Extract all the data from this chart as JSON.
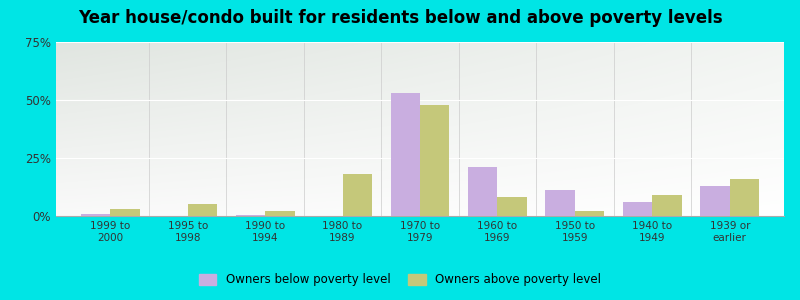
{
  "categories": [
    "1999 to\n2000",
    "1995 to\n1998",
    "1990 to\n1994",
    "1980 to\n1989",
    "1970 to\n1979",
    "1960 to\n1969",
    "1950 to\n1959",
    "1940 to\n1949",
    "1939 or\nearlier"
  ],
  "below_poverty": [
    1.0,
    0.0,
    0.5,
    0.0,
    53.0,
    21.0,
    11.0,
    6.0,
    13.0
  ],
  "above_poverty": [
    3.0,
    5.0,
    2.0,
    18.0,
    48.0,
    8.0,
    2.0,
    9.0,
    16.0
  ],
  "below_color": "#c9aee0",
  "above_color": "#c5c87a",
  "title": "Year house/condo built for residents below and above poverty levels",
  "title_fontsize": 12,
  "ylim": [
    0,
    75
  ],
  "yticks": [
    0,
    25,
    50,
    75
  ],
  "ytick_labels": [
    "0%",
    "25%",
    "50%",
    "75%"
  ],
  "legend_below": "Owners below poverty level",
  "legend_above": "Owners above poverty level",
  "bg_outer": "#00e5e5",
  "bar_width": 0.38
}
